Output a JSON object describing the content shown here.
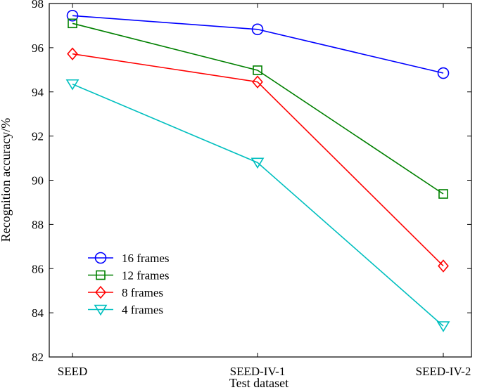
{
  "chart_data": {
    "type": "line",
    "title": "",
    "xlabel": "Test dataset",
    "ylabel": "Recognition accuracy/%",
    "categories": [
      "SEED",
      "SEED-IV-1",
      "SEED-IV-2"
    ],
    "ylim": [
      82,
      98
    ],
    "yticks": [
      82,
      84,
      86,
      88,
      90,
      92,
      94,
      96,
      98
    ],
    "grid": false,
    "legend_position": "bottom-left",
    "series": [
      {
        "name": "16 frames",
        "values": [
          97.45,
          96.83,
          94.85
        ],
        "color": "#0000ff",
        "marker": "circle"
      },
      {
        "name": "12 frames",
        "values": [
          97.1,
          94.98,
          89.38
        ],
        "color": "#008000",
        "marker": "square"
      },
      {
        "name": "8 frames",
        "values": [
          95.72,
          94.45,
          86.12
        ],
        "color": "#ff0000",
        "marker": "diamond"
      },
      {
        "name": "4 frames",
        "values": [
          94.35,
          90.8,
          83.4
        ],
        "color": "#00bfbf",
        "marker": "triangle-down"
      }
    ]
  }
}
